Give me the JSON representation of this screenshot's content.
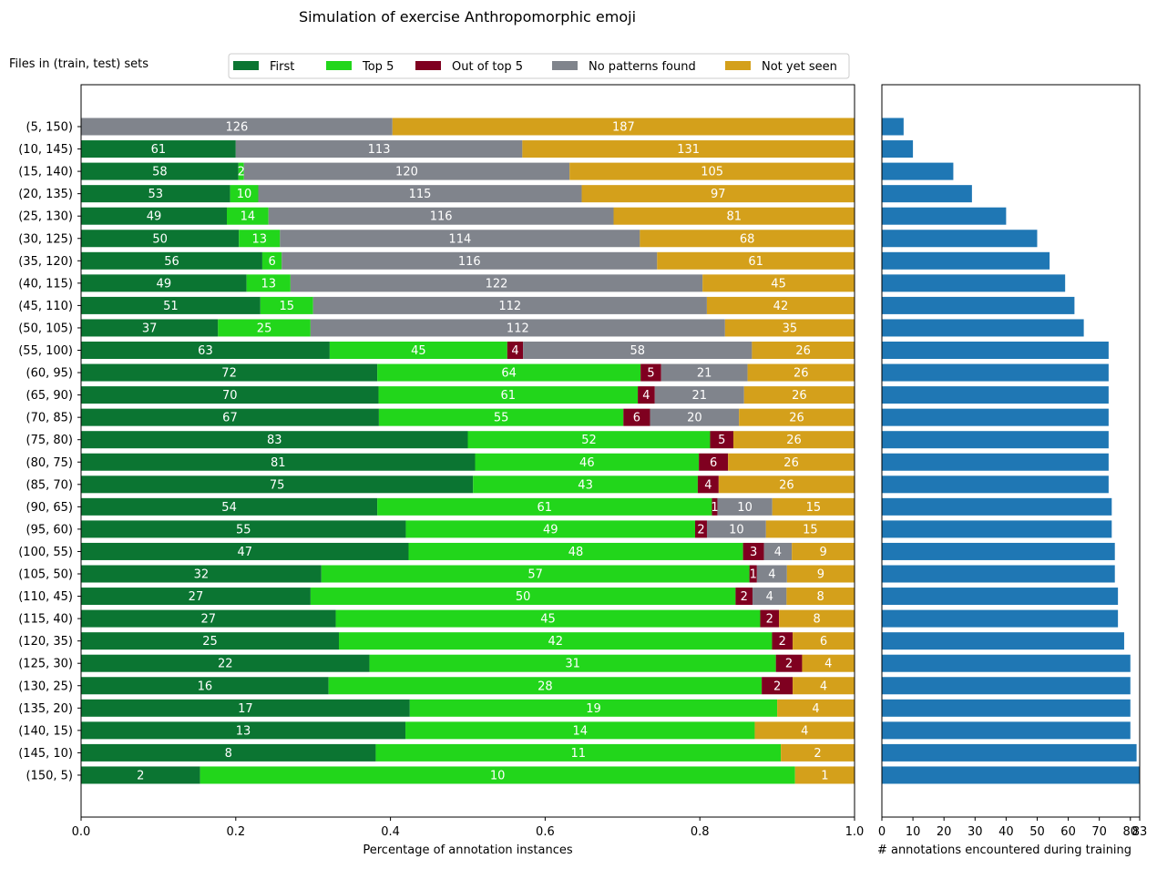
{
  "title": "Simulation of exercise Anthropomorphic emoji",
  "row_axis_label": "Files in (train, test) sets",
  "colors": {
    "first": "#0b7532",
    "top5": "#22d61b",
    "out_of_top5": "#7f0020",
    "no_patterns": "#80848c",
    "not_yet_seen": "#d4a01b",
    "annotations_bar": "#1f77b4"
  },
  "chart_data": [
    {
      "type": "bar",
      "orientation": "horizontal",
      "stacked": true,
      "normalized": true,
      "xlabel": "Percentage of annotation instances",
      "xlim": [
        0,
        1
      ],
      "xticks": [
        "0.0",
        "0.2",
        "0.4",
        "0.6",
        "0.8",
        "1.0"
      ],
      "legend_position": "top",
      "categories": [
        "(5, 150)",
        "(10, 145)",
        "(15, 140)",
        "(20, 135)",
        "(25, 130)",
        "(30, 125)",
        "(35, 120)",
        "(40, 115)",
        "(45, 110)",
        "(50, 105)",
        "(55, 100)",
        "(60, 95)",
        "(65, 90)",
        "(70, 85)",
        "(75, 80)",
        "(80, 75)",
        "(85, 70)",
        "(90, 65)",
        "(95, 60)",
        "(100, 55)",
        "(105, 50)",
        "(110, 45)",
        "(115, 40)",
        "(120, 35)",
        "(125, 30)",
        "(130, 25)",
        "(135, 20)",
        "(140, 15)",
        "(145, 10)",
        "(150, 5)"
      ],
      "series": [
        {
          "name": "First",
          "values": [
            0,
            61,
            58,
            53,
            49,
            50,
            56,
            49,
            51,
            37,
            63,
            72,
            70,
            67,
            83,
            81,
            75,
            54,
            55,
            47,
            32,
            27,
            27,
            25,
            22,
            16,
            17,
            13,
            8,
            2
          ]
        },
        {
          "name": "Top 5",
          "values": [
            0,
            0,
            2,
            10,
            14,
            13,
            6,
            13,
            15,
            25,
            45,
            64,
            61,
            55,
            52,
            46,
            43,
            61,
            49,
            48,
            57,
            50,
            45,
            42,
            31,
            28,
            19,
            14,
            11,
            10
          ]
        },
        {
          "name": "Out of top 5",
          "values": [
            0,
            0,
            0,
            0,
            0,
            0,
            0,
            0,
            0,
            0,
            4,
            5,
            4,
            6,
            5,
            6,
            4,
            1,
            2,
            3,
            1,
            2,
            2,
            2,
            2,
            2,
            0,
            0,
            0,
            0
          ]
        },
        {
          "name": "No patterns found",
          "values": [
            126,
            113,
            120,
            115,
            116,
            114,
            116,
            122,
            112,
            112,
            58,
            21,
            21,
            20,
            0,
            0,
            0,
            10,
            10,
            4,
            4,
            4,
            0,
            0,
            0,
            0,
            0,
            0,
            0,
            0
          ]
        },
        {
          "name": "Not yet seen",
          "values": [
            187,
            131,
            105,
            97,
            81,
            68,
            61,
            45,
            42,
            35,
            26,
            26,
            26,
            26,
            26,
            26,
            26,
            15,
            15,
            9,
            9,
            8,
            8,
            6,
            4,
            4,
            4,
            4,
            2,
            1
          ]
        }
      ]
    },
    {
      "type": "bar",
      "orientation": "horizontal",
      "xlabel": "# annotations encountered during training",
      "xlim": [
        0,
        83
      ],
      "xticks": [
        "0",
        "10",
        "20",
        "30",
        "40",
        "50",
        "60",
        "70",
        "80",
        "83"
      ],
      "xtick_values": [
        0,
        10,
        20,
        30,
        40,
        50,
        60,
        70,
        80,
        83
      ],
      "values": [
        7,
        10,
        23,
        29,
        40,
        50,
        54,
        59,
        62,
        65,
        73,
        73,
        73,
        73,
        73,
        73,
        73,
        74,
        74,
        75,
        75,
        76,
        76,
        78,
        80,
        80,
        80,
        80,
        82,
        83
      ]
    }
  ]
}
